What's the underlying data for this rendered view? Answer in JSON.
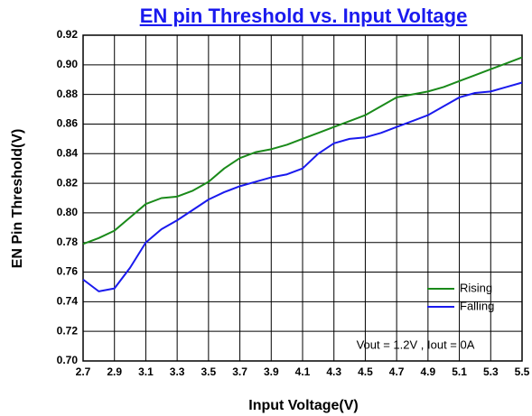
{
  "chart_data": {
    "type": "line",
    "title": "EN pin Threshold vs. Input Voltage",
    "x_label": "Input Voltage(V)",
    "y_label": "EN Pin Threshold(V)",
    "annotation": "Vout = 1.2V , Iout = 0A",
    "x": [
      2.7,
      2.8,
      2.9,
      3.0,
      3.1,
      3.2,
      3.3,
      3.4,
      3.5,
      3.6,
      3.7,
      3.8,
      3.9,
      4.0,
      4.1,
      4.2,
      4.3,
      4.4,
      4.5,
      4.6,
      4.7,
      4.8,
      4.9,
      5.0,
      5.1,
      5.2,
      5.3,
      5.4,
      5.5
    ],
    "series": [
      {
        "name": "Rising",
        "color": "#1a8a1a",
        "values": [
          0.779,
          0.783,
          0.788,
          0.797,
          0.806,
          0.81,
          0.811,
          0.815,
          0.821,
          0.83,
          0.837,
          0.841,
          0.843,
          0.846,
          0.85,
          0.854,
          0.858,
          0.862,
          0.866,
          0.872,
          0.878,
          0.88,
          0.882,
          0.885,
          0.889,
          0.893,
          0.897,
          0.901,
          0.905
        ]
      },
      {
        "name": "Falling",
        "color": "#1a1aee",
        "values": [
          0.755,
          0.747,
          0.749,
          0.763,
          0.78,
          0.789,
          0.795,
          0.802,
          0.809,
          0.814,
          0.818,
          0.821,
          0.824,
          0.826,
          0.83,
          0.84,
          0.847,
          0.85,
          0.851,
          0.854,
          0.858,
          0.862,
          0.866,
          0.872,
          0.878,
          0.881,
          0.882,
          0.885,
          0.888
        ]
      }
    ],
    "xlim": [
      2.7,
      5.5
    ],
    "xticks": [
      2.7,
      2.9,
      3.1,
      3.3,
      3.5,
      3.7,
      3.9,
      4.1,
      4.3,
      4.5,
      4.7,
      4.9,
      5.1,
      5.3,
      5.5
    ],
    "ylim": [
      0.7,
      0.92
    ],
    "yticks": [
      {
        "value": 0.7,
        "label": "0.70"
      },
      {
        "value": 0.72,
        "label": "0.72"
      },
      {
        "value": 0.74,
        "label": "0.74"
      },
      {
        "value": 0.76,
        "label": "0.76"
      },
      {
        "value": 0.78,
        "label": "0.78"
      },
      {
        "value": 0.8,
        "label": "0.80"
      },
      {
        "value": 0.82,
        "label": "0.82"
      },
      {
        "value": 0.84,
        "label": "0.84"
      },
      {
        "value": 0.86,
        "label": "0.86"
      },
      {
        "value": 0.88,
        "label": "0.88"
      },
      {
        "value": 0.9,
        "label": "0.90"
      },
      {
        "value": 0.92,
        "label": "0.92"
      }
    ],
    "grid": true,
    "legend": "lower right"
  }
}
